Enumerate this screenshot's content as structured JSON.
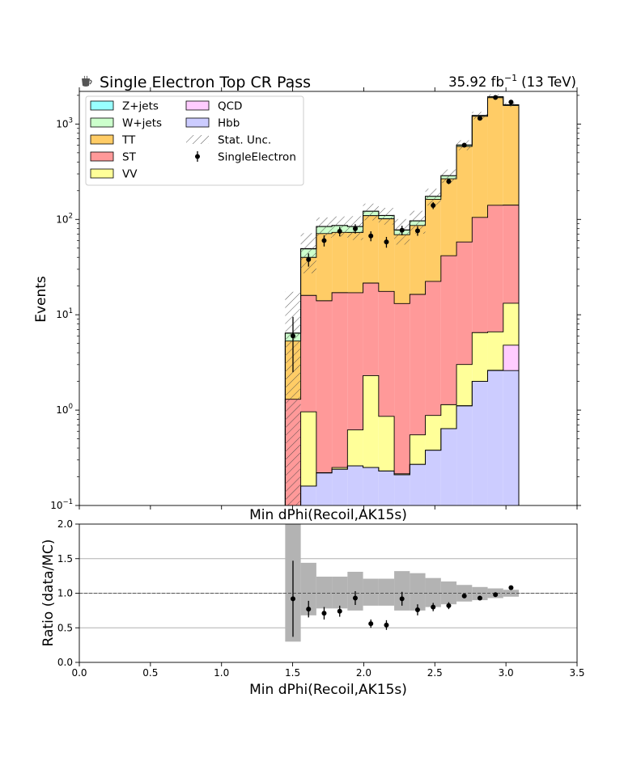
{
  "chart_data": [
    {
      "type": "stacked-step-histogram",
      "title": "Single Electron Top CR Pass",
      "title_icon": "coffee-cup-icon",
      "lumi_label": "35.92 fb",
      "lumi_exponent": "−1",
      "energy_label": "(13 TeV)",
      "xlabel": "Min dPhi(Recoil,AK15s)",
      "ylabel": "Events",
      "xlim": [
        0.0,
        3.5
      ],
      "ylim": [
        0.1,
        2200
      ],
      "yscale": "log",
      "ytick_labels": [
        {
          "value": 0.1,
          "base": "10",
          "exp": "−1"
        },
        {
          "value": 1,
          "base": "10",
          "exp": "0"
        },
        {
          "value": 10,
          "base": "10",
          "exp": "1"
        },
        {
          "value": 100,
          "base": "10",
          "exp": "2"
        },
        {
          "value": 1000,
          "base": "10",
          "exp": "3"
        }
      ],
      "bin_edges": [
        1.4476,
        1.5571,
        1.6667,
        1.7762,
        1.8857,
        1.9952,
        2.1048,
        2.2143,
        2.3238,
        2.4333,
        2.5429,
        2.6524,
        2.7619,
        2.8714,
        2.981,
        3.0905
      ],
      "series": [
        {
          "name": "Hbb",
          "color": "#ccccff",
          "values": [
            0,
            0.16,
            0.22,
            0.24,
            0.26,
            0.25,
            0.23,
            0.21,
            0.27,
            0.38,
            0.64,
            1.11,
            2.0,
            2.6,
            2.6
          ]
        },
        {
          "name": "QCD",
          "color": "#ffccff",
          "values": [
            0,
            0,
            0,
            0,
            0,
            0,
            0,
            0,
            0,
            0,
            0,
            0,
            0,
            0.02,
            2.2
          ]
        },
        {
          "name": "VV",
          "color": "#ffff99",
          "values": [
            0,
            0.8,
            0,
            0.01,
            0.36,
            2.05,
            0.63,
            0.005,
            0.28,
            0.5,
            0.5,
            1.9,
            4.5,
            4.0,
            8.4
          ]
        },
        {
          "name": "ST",
          "color": "#ff9999",
          "values": [
            1.3,
            15.0,
            13.8,
            16.8,
            16.4,
            19.2,
            16.7,
            12.9,
            15.8,
            21.5,
            40.5,
            55.0,
            98.5,
            134.0,
            128.0
          ]
        },
        {
          "name": "TT",
          "color": "#ffcc66",
          "values": [
            4.0,
            24.0,
            57.0,
            56.0,
            56.0,
            88.0,
            84.0,
            56.0,
            70.0,
            140.0,
            225.0,
            525.0,
            1100.0,
            1750.0,
            1420.0
          ]
        },
        {
          "name": "W+jets",
          "color": "#ccffcc",
          "values": [
            1.1,
            9.0,
            13.0,
            13.0,
            11.0,
            12.0,
            8.0,
            8.0,
            10.0,
            12.0,
            20.0,
            20.0,
            25.0,
            40.0,
            30.0
          ]
        },
        {
          "name": "Z+jets",
          "color": "#99ffff",
          "values": [
            0.05,
            0.5,
            0.5,
            0.5,
            0.5,
            0.5,
            0.5,
            0.5,
            0.5,
            0.5,
            1.0,
            1.0,
            1.0,
            2.0,
            2.0
          ]
        }
      ],
      "stat_unc_name": "Stat. Unc.",
      "stat_unc_relative": [
        1.7,
        0.45,
        0.24,
        0.24,
        0.28,
        0.2,
        0.2,
        0.3,
        0.27,
        0.2,
        0.16,
        0.12,
        0.09,
        0.06,
        0.05
      ],
      "data": {
        "name": "SingleElectron",
        "x": [
          1.5024,
          1.6119,
          1.7214,
          1.831,
          1.9405,
          2.05,
          2.1595,
          2.269,
          2.3786,
          2.4881,
          2.5976,
          2.7071,
          2.8167,
          2.9262,
          3.0357
        ],
        "y": [
          6.0,
          38.0,
          60.0,
          75.0,
          80.0,
          67.0,
          58.0,
          77.0,
          76.0,
          140.0,
          250.0,
          600.0,
          1150.0,
          1900.0,
          1700.0
        ],
        "yerr_low": [
          3.5,
          6.0,
          8.0,
          8.5,
          9.0,
          8.0,
          7.5,
          8.8,
          8.7,
          11.8,
          15.8,
          24.5,
          34.0,
          43.6,
          41.2
        ],
        "yerr_high": [
          3.5,
          6.0,
          8.0,
          8.5,
          9.0,
          8.0,
          7.5,
          8.8,
          8.7,
          11.8,
          15.8,
          24.5,
          34.0,
          43.6,
          41.2
        ]
      },
      "legend": {
        "placement": "upper-left",
        "columns": [
          [
            "Z+jets",
            "W+jets",
            "TT",
            "ST",
            "VV"
          ],
          [
            "QCD",
            "Hbb",
            "Stat. Unc.",
            "SingleElectron"
          ]
        ]
      }
    },
    {
      "type": "ratio",
      "title": "Min dPhi(Recoil,AK15s)",
      "xlabel": "Min dPhi(Recoil,AK15s)",
      "ylabel": "Ratio (data/MC)",
      "xlim": [
        0.0,
        3.5
      ],
      "ylim": [
        0.0,
        2.0
      ],
      "x_ticks": [
        0.0,
        0.5,
        1.0,
        1.5,
        2.0,
        2.5,
        3.0,
        3.5
      ],
      "x_tick_labels": [
        "0.0",
        "0.5",
        "1.0",
        "1.5",
        "2.0",
        "2.5",
        "3.0",
        "3.5"
      ],
      "y_ticks": [
        0.0,
        0.5,
        1.0,
        1.5,
        2.0
      ],
      "y_tick_labels": [
        "0.0",
        "0.5",
        "1.0",
        "1.5",
        "2.0"
      ],
      "grid_y": [
        0.5,
        1.0,
        1.5
      ],
      "reference_line": 1.0,
      "unc_band": {
        "low": [
          0.3,
          0.68,
          0.78,
          0.78,
          0.75,
          0.82,
          0.82,
          0.75,
          0.75,
          0.8,
          0.84,
          0.88,
          0.9,
          0.93,
          0.95
        ],
        "high": [
          2.0,
          1.44,
          1.24,
          1.24,
          1.31,
          1.21,
          1.21,
          1.32,
          1.29,
          1.22,
          1.17,
          1.12,
          1.09,
          1.07,
          1.05
        ]
      },
      "points": {
        "x": [
          1.5024,
          1.6119,
          1.7214,
          1.831,
          1.9405,
          2.05,
          2.1595,
          2.269,
          2.3786,
          2.4881,
          2.5976,
          2.7071,
          2.8167,
          2.9262,
          3.0357
        ],
        "y": [
          0.92,
          0.77,
          0.71,
          0.74,
          0.93,
          0.56,
          0.54,
          0.92,
          0.76,
          0.8,
          0.82,
          0.96,
          0.93,
          0.98,
          1.08
        ],
        "yerr": [
          0.55,
          0.12,
          0.09,
          0.08,
          0.1,
          0.06,
          0.07,
          0.1,
          0.08,
          0.06,
          0.05,
          0.03,
          0.02,
          0.02,
          0.02
        ]
      }
    }
  ]
}
